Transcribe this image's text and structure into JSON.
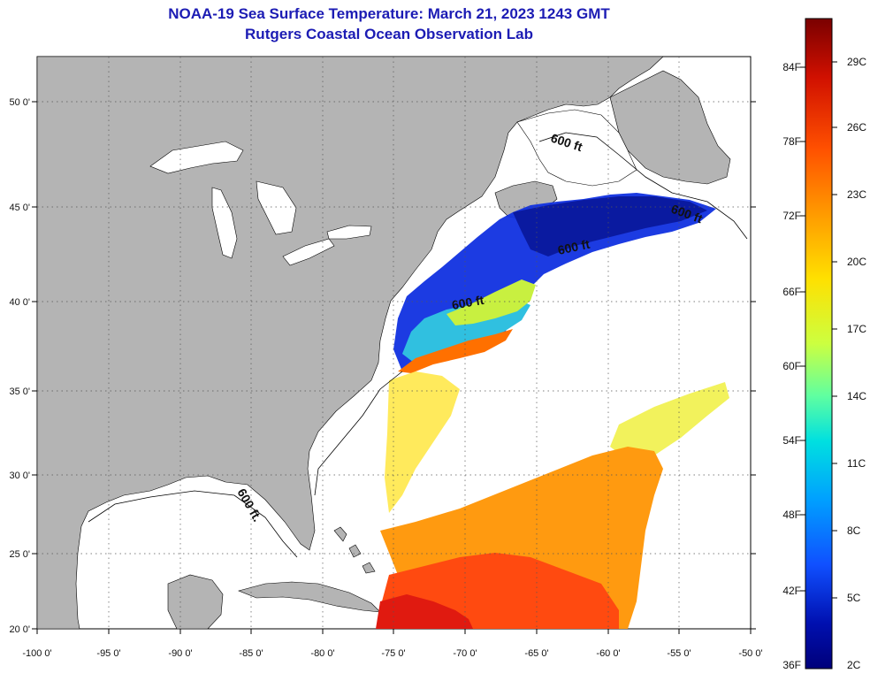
{
  "header": {
    "title": "NOAA-19 Sea Surface Temperature:  March 21, 2023 1243 GMT",
    "subtitle": "Rutgers Coastal Ocean Observation Lab"
  },
  "map": {
    "lon_ticks": [
      "-100 0'",
      "-95 0'",
      "-90 0'",
      "-85 0'",
      "-80 0'",
      "-75 0'",
      "-70 0'",
      "-65 0'",
      "-60 0'",
      "-55 0'",
      "-50 0'"
    ],
    "lat_ticks": [
      "50 0'",
      "45 0'",
      "40 0'",
      "35 0'",
      "30 0'",
      "25 0'",
      "20 0'"
    ],
    "contour_label": "600 ft",
    "contour_label_alt": "600 ft.",
    "colors": {
      "land": "#b4b4b4",
      "water": "#ffffff",
      "grid": "#555555"
    }
  },
  "colorbar": {
    "f_labels": [
      "84F",
      "78F",
      "72F",
      "66F",
      "60F",
      "54F",
      "48F",
      "42F",
      "36F"
    ],
    "c_labels": [
      "29C",
      "26C",
      "23C",
      "20C",
      "17C",
      "14C",
      "11C",
      "8C",
      "5C",
      "2C"
    ],
    "colors": [
      "#7a0000",
      "#d01000",
      "#ff5000",
      "#ff9a00",
      "#ffe000",
      "#ccff40",
      "#60ffa0",
      "#00e0e0",
      "#00a0ff",
      "#1050ff",
      "#0010b0",
      "#00007a"
    ]
  }
}
